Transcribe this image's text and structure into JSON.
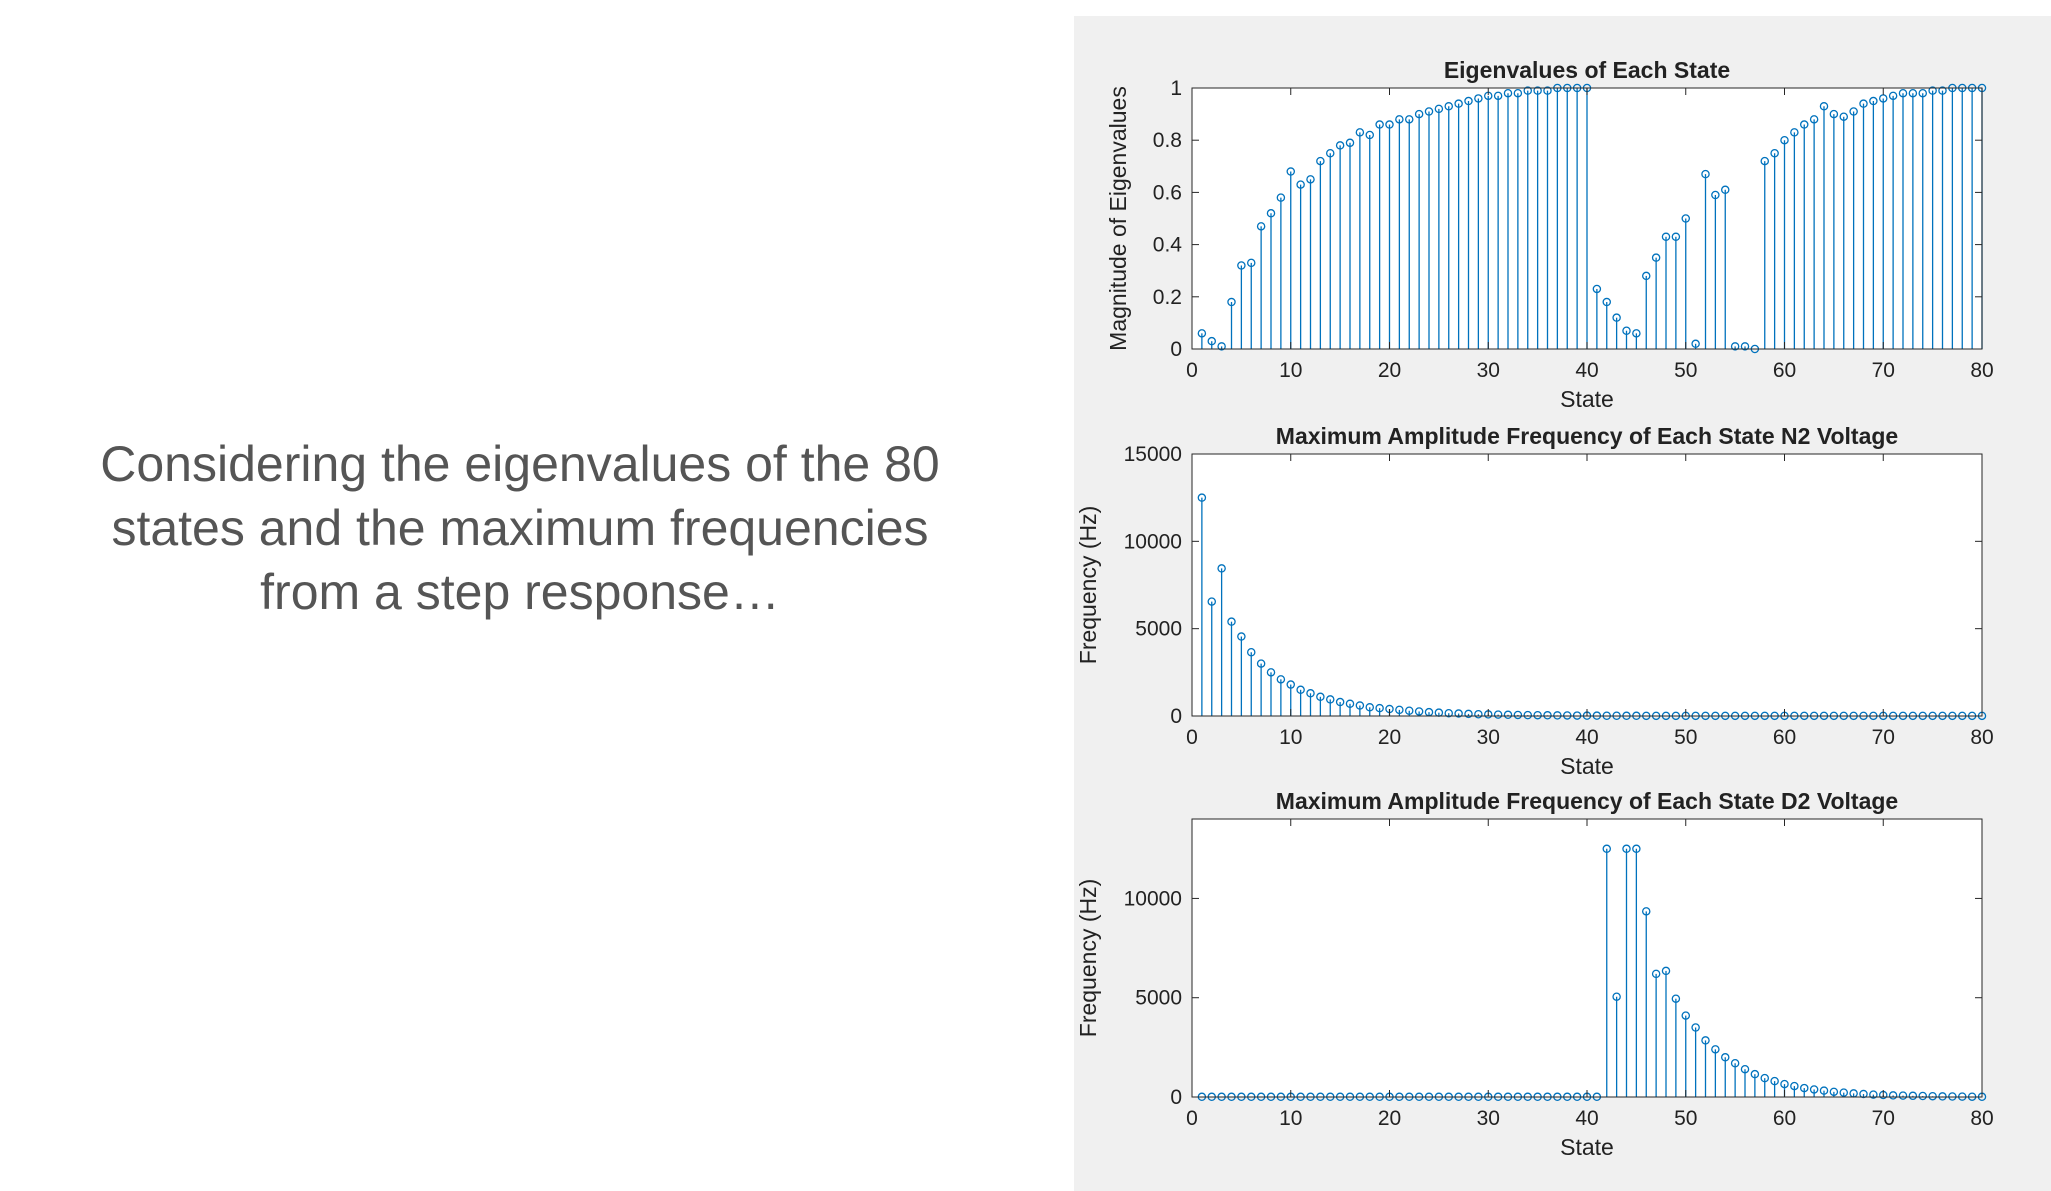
{
  "slide": {
    "caption_lines": [
      "Considering the eigenvalues of the 80",
      "states and the maximum frequencies",
      "from a step response…"
    ]
  },
  "colors": {
    "stem": "#0072BD",
    "figure_bg": "#f0f0f0",
    "axes_bg": "#ffffff",
    "caption": "#555555"
  },
  "chart_data": [
    {
      "type": "stem",
      "title": "Eigenvalues of Each State",
      "xlabel": "State",
      "ylabel": "Magnitude of Eigenvalues",
      "xlim": [
        0,
        80
      ],
      "ylim": [
        0,
        1
      ],
      "xticks": [
        0,
        10,
        20,
        30,
        40,
        50,
        60,
        70,
        80
      ],
      "yticks": [
        0,
        0.2,
        0.4,
        0.6,
        0.8,
        1
      ],
      "ytick_labels": [
        "0",
        "0.2",
        "0.4",
        "0.6",
        "0.8",
        "1"
      ],
      "x": [
        1,
        2,
        3,
        4,
        5,
        6,
        7,
        8,
        9,
        10,
        11,
        12,
        13,
        14,
        15,
        16,
        17,
        18,
        19,
        20,
        21,
        22,
        23,
        24,
        25,
        26,
        27,
        28,
        29,
        30,
        31,
        32,
        33,
        34,
        35,
        36,
        37,
        38,
        39,
        40,
        41,
        42,
        43,
        44,
        45,
        46,
        47,
        48,
        49,
        50,
        51,
        52,
        53,
        54,
        55,
        56,
        57,
        58,
        59,
        60,
        61,
        62,
        63,
        64,
        65,
        66,
        67,
        68,
        69,
        70,
        71,
        72,
        73,
        74,
        75,
        76,
        77,
        78,
        79,
        80
      ],
      "values": [
        0.06,
        0.03,
        0.01,
        0.18,
        0.32,
        0.33,
        0.47,
        0.52,
        0.58,
        0.68,
        0.63,
        0.65,
        0.72,
        0.75,
        0.78,
        0.79,
        0.83,
        0.82,
        0.86,
        0.86,
        0.88,
        0.88,
        0.9,
        0.91,
        0.92,
        0.93,
        0.94,
        0.95,
        0.96,
        0.97,
        0.97,
        0.98,
        0.98,
        0.99,
        0.99,
        0.99,
        1.0,
        1.0,
        1.0,
        1.0,
        0.23,
        0.18,
        0.12,
        0.07,
        0.06,
        0.28,
        0.35,
        0.43,
        0.43,
        0.5,
        0.02,
        0.67,
        0.59,
        0.61,
        0.01,
        0.01,
        0.0,
        0.72,
        0.75,
        0.8,
        0.83,
        0.86,
        0.88,
        0.93,
        0.9,
        0.89,
        0.91,
        0.94,
        0.95,
        0.96,
        0.97,
        0.98,
        0.98,
        0.98,
        0.99,
        0.99,
        1.0,
        1.0,
        1.0,
        1.0
      ]
    },
    {
      "type": "stem",
      "title": "Maximum Amplitude Frequency of Each State N2 Voltage",
      "xlabel": "State",
      "ylabel": "Frequency (Hz)",
      "xlim": [
        0,
        80
      ],
      "ylim": [
        0,
        15000
      ],
      "xticks": [
        0,
        10,
        20,
        30,
        40,
        50,
        60,
        70,
        80
      ],
      "yticks": [
        0,
        5000,
        10000,
        15000
      ],
      "ytick_labels": [
        "0",
        "5000",
        "10000",
        "15000"
      ],
      "x": [
        1,
        2,
        3,
        4,
        5,
        6,
        7,
        8,
        9,
        10,
        11,
        12,
        13,
        14,
        15,
        16,
        17,
        18,
        19,
        20,
        21,
        22,
        23,
        24,
        25,
        26,
        27,
        28,
        29,
        30,
        31,
        32,
        33,
        34,
        35,
        36,
        37,
        38,
        39,
        40,
        41,
        42,
        43,
        44,
        45,
        46,
        47,
        48,
        49,
        50,
        51,
        52,
        53,
        54,
        55,
        56,
        57,
        58,
        59,
        60,
        61,
        62,
        63,
        64,
        65,
        66,
        67,
        68,
        69,
        70,
        71,
        72,
        73,
        74,
        75,
        76,
        77,
        78,
        79,
        80
      ],
      "values": [
        12500,
        6550,
        8450,
        5400,
        4550,
        3650,
        3000,
        2500,
        2100,
        1800,
        1500,
        1300,
        1100,
        950,
        800,
        700,
        600,
        500,
        450,
        400,
        350,
        300,
        260,
        220,
        190,
        160,
        140,
        120,
        100,
        90,
        80,
        70,
        60,
        50,
        45,
        40,
        35,
        30,
        25,
        20,
        20,
        15,
        15,
        12,
        12,
        10,
        10,
        10,
        10,
        10,
        10,
        10,
        10,
        10,
        10,
        10,
        10,
        10,
        10,
        10,
        10,
        10,
        10,
        10,
        10,
        10,
        10,
        10,
        10,
        10,
        10,
        10,
        10,
        10,
        10,
        10,
        10,
        10,
        10,
        10
      ]
    },
    {
      "type": "stem",
      "title": "Maximum Amplitude Frequency of Each State D2 Voltage",
      "xlabel": "State",
      "ylabel": "Frequency (Hz)",
      "xlim": [
        0,
        80
      ],
      "ylim": [
        0,
        14000
      ],
      "xticks": [
        0,
        10,
        20,
        30,
        40,
        50,
        60,
        70,
        80
      ],
      "yticks": [
        0,
        5000,
        10000
      ],
      "ytick_labels": [
        "0",
        "5000",
        "10000"
      ],
      "x": [
        1,
        2,
        3,
        4,
        5,
        6,
        7,
        8,
        9,
        10,
        11,
        12,
        13,
        14,
        15,
        16,
        17,
        18,
        19,
        20,
        21,
        22,
        23,
        24,
        25,
        26,
        27,
        28,
        29,
        30,
        31,
        32,
        33,
        34,
        35,
        36,
        37,
        38,
        39,
        40,
        41,
        42,
        43,
        44,
        45,
        46,
        47,
        48,
        49,
        50,
        51,
        52,
        53,
        54,
        55,
        56,
        57,
        58,
        59,
        60,
        61,
        62,
        63,
        64,
        65,
        66,
        67,
        68,
        69,
        70,
        71,
        72,
        73,
        74,
        75,
        76,
        77,
        78,
        79,
        80
      ],
      "values": [
        10,
        10,
        10,
        10,
        10,
        10,
        10,
        10,
        10,
        10,
        10,
        10,
        10,
        10,
        10,
        10,
        10,
        10,
        10,
        10,
        10,
        10,
        10,
        10,
        10,
        10,
        10,
        10,
        10,
        10,
        10,
        10,
        10,
        10,
        10,
        10,
        10,
        10,
        10,
        10,
        10,
        12500,
        5050,
        12500,
        12500,
        9350,
        6200,
        6350,
        4950,
        4100,
        3500,
        2850,
        2400,
        2000,
        1700,
        1400,
        1150,
        950,
        800,
        650,
        550,
        450,
        380,
        320,
        260,
        220,
        180,
        150,
        120,
        100,
        80,
        70,
        60,
        50,
        40,
        30,
        25,
        20,
        15,
        10
      ]
    }
  ]
}
